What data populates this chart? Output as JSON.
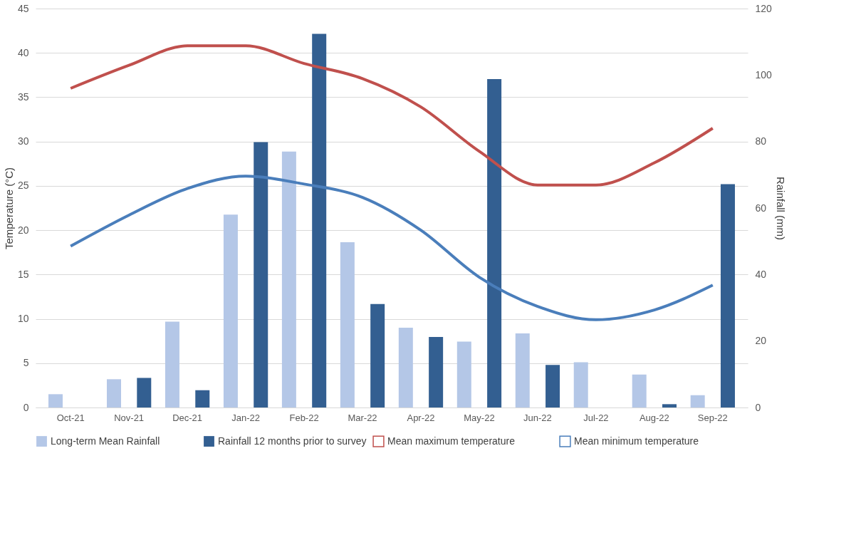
{
  "chart_data": {
    "type": "bar",
    "ylabel": "Temperature (°C)",
    "y2label": "Rainfall (mm)",
    "categories": [
      "Oct-21",
      "Nov-21",
      "Dec-21",
      "Jan-22",
      "Feb-22",
      "Mar-22",
      "Apr-22",
      "May-22",
      "Jun-22",
      "Jul-22",
      "Aug-22",
      "Sep-22"
    ],
    "series": [
      {
        "name": "Long-term Mean Rainfall",
        "axis": "y2",
        "color": "#b4c7e7",
        "values": [
          4,
          8.5,
          25.8,
          58,
          77,
          49.7,
          24,
          19.8,
          22.3,
          13.6,
          9.9,
          3.7
        ]
      },
      {
        "name": "Rainfall 12 months prior to survey",
        "axis": "y2",
        "color": "#335f91",
        "values": [
          0,
          8.9,
          5.2,
          79.8,
          112.4,
          31.1,
          21.2,
          98.8,
          12.8,
          0,
          1,
          67.2
        ]
      },
      {
        "name": "Mean maximum temperature",
        "type": "line",
        "color": "#c0504d",
        "values": [
          36,
          38.6,
          40.8,
          40.8,
          38.8,
          37.1,
          33.9,
          28.9,
          25.1,
          25.1,
          27.6,
          31.5
        ]
      },
      {
        "name": "Mean minimum temperature",
        "type": "line",
        "color": "#4a7ebb",
        "values": [
          18.2,
          21.7,
          24.7,
          26.1,
          25.2,
          23.7,
          20,
          14.7,
          11.4,
          9.9,
          11,
          13.8
        ]
      }
    ],
    "ylim": [
      0,
      45
    ],
    "yticks": [
      0,
      5,
      10,
      15,
      20,
      25,
      30,
      35,
      40,
      45
    ],
    "y2lim": [
      0,
      120
    ],
    "y2ticks": [
      0,
      20,
      40,
      60,
      80,
      100,
      120
    ],
    "grid": "y",
    "legend": "bottom",
    "marker": "none",
    "line_style": "solid"
  }
}
